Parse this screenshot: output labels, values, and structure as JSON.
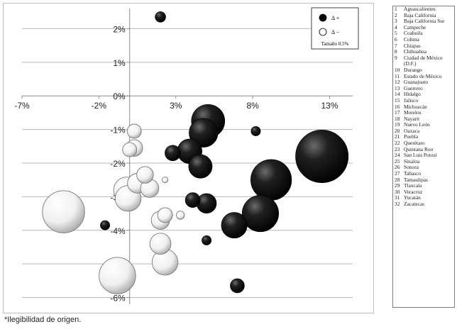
{
  "chart_data": {
    "type": "scatter",
    "subtype": "bubble",
    "xlim": [
      -7,
      14.5
    ],
    "ylim": [
      -6.2,
      2.6
    ],
    "x_ticks": [
      -7,
      -2,
      3,
      8,
      13
    ],
    "x_tick_labels": [
      "-7%",
      "-2%",
      "3%",
      "8%",
      "13%"
    ],
    "y_ticks": [
      2,
      1,
      0,
      -1,
      -2,
      -3,
      -4,
      -5,
      -6
    ],
    "y_tick_labels": [
      "2%",
      "1%",
      "0%",
      "-1%",
      "-2%",
      "-3%",
      "-4%",
      "-5%",
      "-6%"
    ],
    "grid": "horizontal",
    "legend": {
      "placement": "top-right",
      "entries": [
        {
          "label": "Δ +",
          "style": "dark"
        },
        {
          "label": "Δ −",
          "style": "light"
        }
      ],
      "size_note": "Tamaño 0.5%"
    },
    "series": [
      {
        "style": "dark",
        "points": [
          {
            "x": 2.0,
            "y": 2.35,
            "size": 0.1
          },
          {
            "x": 5.1,
            "y": -0.75,
            "size": 1.0
          },
          {
            "x": 4.8,
            "y": -1.1,
            "size": 0.75
          },
          {
            "x": 8.2,
            "y": -1.05,
            "size": 0.08
          },
          {
            "x": 12.5,
            "y": -1.8,
            "size": 2.5
          },
          {
            "x": 2.8,
            "y": -1.7,
            "size": 0.22
          },
          {
            "x": 3.9,
            "y": -1.65,
            "size": 0.55
          },
          {
            "x": 4.6,
            "y": -2.1,
            "size": 0.5
          },
          {
            "x": 9.2,
            "y": -2.5,
            "size": 1.5
          },
          {
            "x": 4.1,
            "y": -3.1,
            "size": 0.2
          },
          {
            "x": 5.0,
            "y": -3.2,
            "size": 0.35
          },
          {
            "x": 8.5,
            "y": -3.5,
            "size": 1.2
          },
          {
            "x": 6.8,
            "y": -3.85,
            "size": 0.6
          },
          {
            "x": -1.6,
            "y": -3.85,
            "size": 0.08
          },
          {
            "x": 5.0,
            "y": -4.3,
            "size": 0.08
          },
          {
            "x": 7.0,
            "y": -5.65,
            "size": 0.18
          }
        ]
      },
      {
        "style": "light",
        "points": [
          {
            "x": 0.3,
            "y": -1.05,
            "size": 0.18
          },
          {
            "x": 0.0,
            "y": -1.6,
            "size": 0.18
          },
          {
            "x": 0.3,
            "y": -1.55,
            "size": 0.25
          },
          {
            "x": 1.0,
            "y": -2.35,
            "size": 0.25
          },
          {
            "x": 0.5,
            "y": -2.6,
            "size": 0.35
          },
          {
            "x": -0.2,
            "y": -2.8,
            "size": 0.6
          },
          {
            "x": 1.3,
            "y": -2.75,
            "size": 0.3
          },
          {
            "x": 2.3,
            "y": -2.5,
            "size": 0.03
          },
          {
            "x": -0.1,
            "y": -3.05,
            "size": 0.6
          },
          {
            "x": -4.3,
            "y": -3.45,
            "size": 1.6
          },
          {
            "x": 2.3,
            "y": -3.55,
            "size": 0.2
          },
          {
            "x": 2.0,
            "y": -3.7,
            "size": 0.3
          },
          {
            "x": 3.3,
            "y": -3.55,
            "size": 0.06
          },
          {
            "x": 2.0,
            "y": -4.4,
            "size": 0.4
          },
          {
            "x": 2.3,
            "y": -4.95,
            "size": 0.6
          },
          {
            "x": -0.8,
            "y": -5.35,
            "size": 1.2
          }
        ]
      }
    ]
  },
  "states": [
    {
      "num": "1",
      "name": "Aguascalientes"
    },
    {
      "num": "2",
      "name": "Baja California"
    },
    {
      "num": "3",
      "name": "Baja California Sur"
    },
    {
      "num": "4",
      "name": "Campeche"
    },
    {
      "num": "5",
      "name": "Coahuila"
    },
    {
      "num": "6",
      "name": "Colima"
    },
    {
      "num": "7",
      "name": "Chiapas"
    },
    {
      "num": "8",
      "name": "Chihuahua"
    },
    {
      "num": "9",
      "name": "Ciudad de México (D.F.)"
    },
    {
      "num": "10",
      "name": "Durango"
    },
    {
      "num": "11",
      "name": "Estado de México"
    },
    {
      "num": "12",
      "name": "Guanajuato"
    },
    {
      "num": "13",
      "name": "Guerrero"
    },
    {
      "num": "14",
      "name": "Hidalgo"
    },
    {
      "num": "15",
      "name": "Jalisco"
    },
    {
      "num": "16",
      "name": "Michoacán"
    },
    {
      "num": "17",
      "name": "Morelos"
    },
    {
      "num": "18",
      "name": "Nayarit"
    },
    {
      "num": "19",
      "name": "Nuevo León"
    },
    {
      "num": "20",
      "name": "Oaxaca"
    },
    {
      "num": "21",
      "name": "Puebla"
    },
    {
      "num": "22",
      "name": "Querétaro"
    },
    {
      "num": "23",
      "name": "Quintana Roo"
    },
    {
      "num": "24",
      "name": "San Luis Potosí"
    },
    {
      "num": "25",
      "name": "Sinaloa"
    },
    {
      "num": "26",
      "name": "Sonora"
    },
    {
      "num": "27",
      "name": "Tabasco"
    },
    {
      "num": "28",
      "name": "Tamaulipas"
    },
    {
      "num": "29",
      "name": "Tlaxcala"
    },
    {
      "num": "30",
      "name": "Veracruz"
    },
    {
      "num": "31",
      "name": "Yucatán"
    },
    {
      "num": "32",
      "name": "Zacatecas"
    }
  ],
  "footnote": "*Ilegibilidad de origen."
}
